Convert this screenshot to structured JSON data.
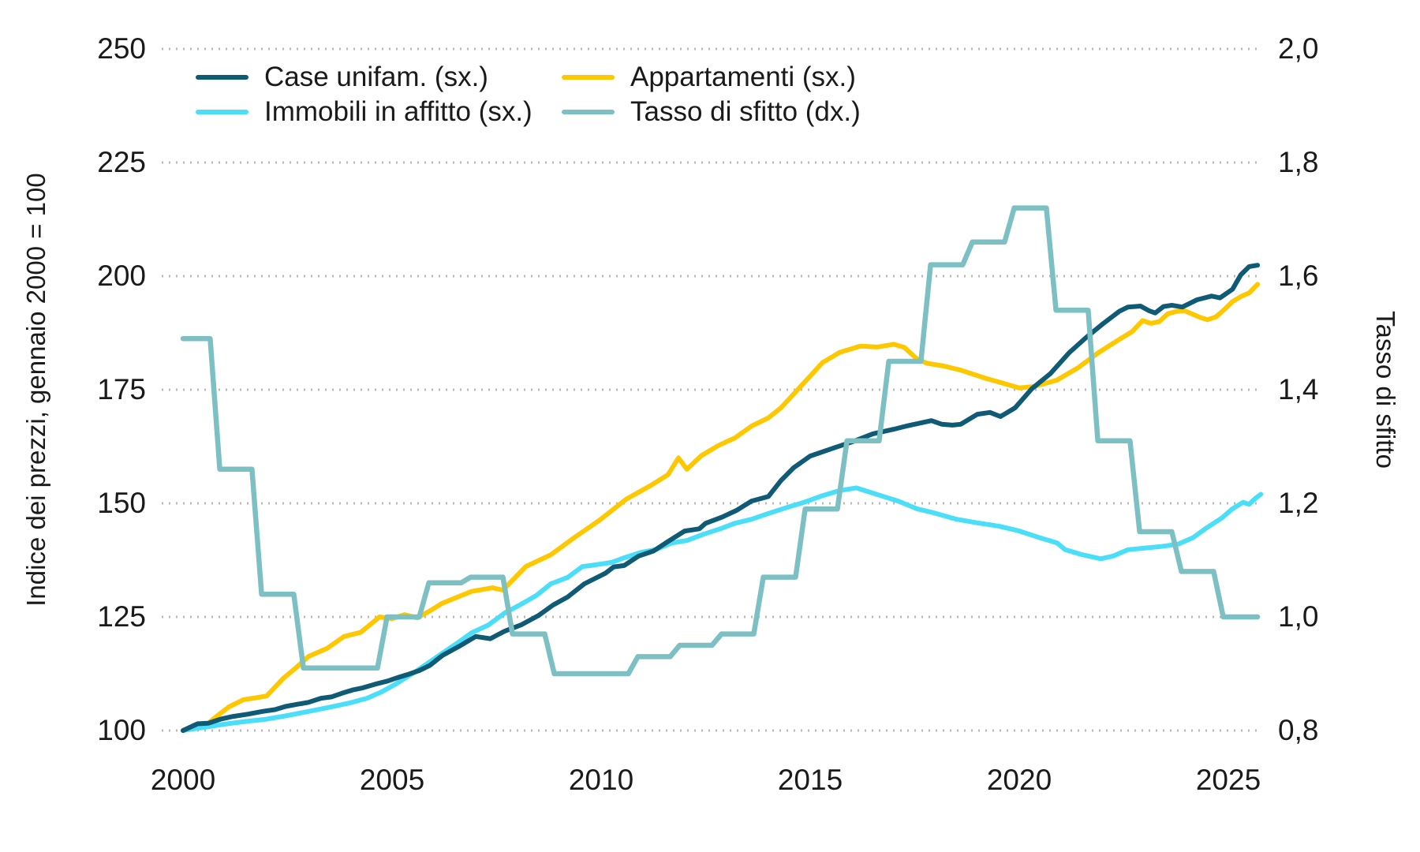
{
  "colors": {
    "case_unifam": "#0f5a74",
    "appartamenti": "#fec800",
    "immobili_affitto": "#4adef8",
    "tasso_sfitto": "#7cc0c3",
    "grid": "#b8b8b8",
    "text": "#1a1a1a"
  },
  "legend": {
    "case_unifam": "Case unifam. (sx.)",
    "immobili_affitto": "Immobili in affitto (sx.)",
    "appartamenti": "Appartamenti (sx.)",
    "tasso_sfitto": "Tasso di sfitto (dx.)"
  },
  "chart_data": {
    "type": "line",
    "title": "",
    "xlabel": "",
    "ylabel_left": "Indice dei prezzi, gennaio 2000 = 100",
    "ylabel_right": "Tasso di sfitto",
    "grid": "dotted horizontal",
    "legend_position": "top-left, two columns",
    "x_axis": {
      "range": [
        2000,
        2025.7
      ],
      "ticks": [
        2000,
        2005,
        2010,
        2015,
        2020,
        2025
      ],
      "tick_labels": [
        "2000",
        "2005",
        "2010",
        "2015",
        "2020",
        "2025"
      ]
    },
    "y_axis_left": {
      "range": [
        100,
        250
      ],
      "tick_values": [
        100,
        125,
        150,
        175,
        200,
        225,
        250
      ],
      "tick_labels": [
        "100",
        "125",
        "150",
        "175",
        "200",
        "225",
        "250"
      ]
    },
    "y_axis_right": {
      "range": [
        0.8,
        2.0
      ],
      "tick_values": [
        0.8,
        1.0,
        1.2,
        1.4,
        1.6,
        1.8,
        2.0
      ],
      "tick_labels": [
        "0,8",
        "1,0",
        "1,2",
        "1,4",
        "1,6",
        "1,8",
        "2,0"
      ]
    },
    "series": [
      {
        "id": "appartamenti",
        "name": "Appartamenti (sx.)",
        "axis": "left",
        "style": "line",
        "points": [
          [
            0,
            100
          ],
          [
            0.3,
            101.2
          ],
          [
            0.5,
            100.8
          ],
          [
            0.8,
            103.1
          ],
          [
            1.1,
            105.2
          ],
          [
            1.45,
            106.8
          ],
          [
            1.75,
            107.2
          ],
          [
            2,
            107.6
          ],
          [
            2.4,
            111.5
          ],
          [
            2.7,
            113.8
          ],
          [
            3,
            116.3
          ],
          [
            3.45,
            118.1
          ],
          [
            3.85,
            120.7
          ],
          [
            4.25,
            121.6
          ],
          [
            4.7,
            125
          ],
          [
            5,
            124.6
          ],
          [
            5.3,
            125.5
          ],
          [
            5.6,
            124.8
          ],
          [
            5.9,
            126.3
          ],
          [
            6.2,
            128
          ],
          [
            6.9,
            130.6
          ],
          [
            7.4,
            131.4
          ],
          [
            7.65,
            130.9
          ],
          [
            8.2,
            136.1
          ],
          [
            8.8,
            138.7
          ],
          [
            9.35,
            142.4
          ],
          [
            9.95,
            146.2
          ],
          [
            10.6,
            150.9
          ],
          [
            11.2,
            154
          ],
          [
            11.6,
            156.3
          ],
          [
            11.85,
            160
          ],
          [
            12.05,
            157.5
          ],
          [
            12.4,
            160.5
          ],
          [
            12.8,
            162.7
          ],
          [
            13.2,
            164.4
          ],
          [
            13.6,
            167
          ],
          [
            14,
            168.8
          ],
          [
            14.3,
            171
          ],
          [
            14.7,
            175
          ],
          [
            15,
            178
          ],
          [
            15.3,
            181
          ],
          [
            15.7,
            183.2
          ],
          [
            16.2,
            184.6
          ],
          [
            16.6,
            184.4
          ],
          [
            17,
            185
          ],
          [
            17.25,
            184.3
          ],
          [
            17.55,
            181.8
          ],
          [
            17.8,
            180.8
          ],
          [
            18.2,
            180.2
          ],
          [
            18.6,
            179.3
          ],
          [
            19.2,
            177.5
          ],
          [
            19.7,
            176.2
          ],
          [
            20,
            175.4
          ],
          [
            20.35,
            175.7
          ],
          [
            20.9,
            177.1
          ],
          [
            21.4,
            179.8
          ],
          [
            21.9,
            183.2
          ],
          [
            22.4,
            186.1
          ],
          [
            22.7,
            187.8
          ],
          [
            22.95,
            190.2
          ],
          [
            23.15,
            189.6
          ],
          [
            23.35,
            190
          ],
          [
            23.55,
            191.7
          ],
          [
            23.75,
            192.2
          ],
          [
            23.95,
            192.4
          ],
          [
            24.1,
            191.8
          ],
          [
            24.3,
            191
          ],
          [
            24.5,
            190.4
          ],
          [
            24.7,
            191
          ],
          [
            24.9,
            192.6
          ],
          [
            25.1,
            194.4
          ],
          [
            25.3,
            195.5
          ],
          [
            25.5,
            196.3
          ],
          [
            25.7,
            198.2
          ]
        ]
      },
      {
        "id": "immobili_affitto",
        "name": "Immobili in affitto (sx.)",
        "axis": "left",
        "style": "line",
        "points": [
          [
            0,
            100
          ],
          [
            0.5,
            100.7
          ],
          [
            1,
            101.4
          ],
          [
            1.5,
            102
          ],
          [
            2,
            102.5
          ],
          [
            2.5,
            103.3
          ],
          [
            3,
            104.2
          ],
          [
            3.5,
            105.1
          ],
          [
            4,
            106.1
          ],
          [
            4.4,
            107.1
          ],
          [
            4.75,
            108.5
          ],
          [
            5.1,
            110.3
          ],
          [
            5.6,
            113.2
          ],
          [
            6.2,
            117
          ],
          [
            6.6,
            119.5
          ],
          [
            6.9,
            121.5
          ],
          [
            7.3,
            123.2
          ],
          [
            7.7,
            125.9
          ],
          [
            8.05,
            127.6
          ],
          [
            8.45,
            129.7
          ],
          [
            8.8,
            132.3
          ],
          [
            9.2,
            133.7
          ],
          [
            9.55,
            136.1
          ],
          [
            9.75,
            136.3
          ],
          [
            10.25,
            137
          ],
          [
            10.55,
            138
          ],
          [
            10.95,
            139.2
          ],
          [
            11.3,
            139.8
          ],
          [
            11.7,
            141.3
          ],
          [
            12.05,
            141.8
          ],
          [
            12.45,
            143.2
          ],
          [
            12.85,
            144.4
          ],
          [
            13.2,
            145.6
          ],
          [
            13.6,
            146.5
          ],
          [
            13.95,
            147.6
          ],
          [
            14.45,
            149.1
          ],
          [
            14.85,
            150.2
          ],
          [
            15.3,
            151.7
          ],
          [
            15.7,
            152.8
          ],
          [
            16.1,
            153.4
          ],
          [
            16.45,
            152.4
          ],
          [
            16.72,
            151.6
          ],
          [
            17.1,
            150.5
          ],
          [
            17.55,
            148.8
          ],
          [
            18,
            147.8
          ],
          [
            18.5,
            146.5
          ],
          [
            19,
            145.7
          ],
          [
            19.5,
            145
          ],
          [
            20,
            143.9
          ],
          [
            20.5,
            142.4
          ],
          [
            20.9,
            141.3
          ],
          [
            21.1,
            139.8
          ],
          [
            21.5,
            138.7
          ],
          [
            21.95,
            137.8
          ],
          [
            22.25,
            138.4
          ],
          [
            22.6,
            139.8
          ],
          [
            22.95,
            140.1
          ],
          [
            23.4,
            140.5
          ],
          [
            23.8,
            141
          ],
          [
            24.15,
            142.4
          ],
          [
            24.45,
            144.4
          ],
          [
            24.85,
            146.8
          ],
          [
            25.1,
            148.8
          ],
          [
            25.35,
            150.2
          ],
          [
            25.5,
            149.8
          ],
          [
            25.65,
            151.1
          ],
          [
            25.78,
            152
          ]
        ]
      },
      {
        "id": "case_unifam",
        "name": "Case unifam. (sx.)",
        "axis": "left",
        "style": "line",
        "points": [
          [
            0,
            100
          ],
          [
            0.35,
            101.5
          ],
          [
            0.6,
            101.6
          ],
          [
            0.9,
            102.5
          ],
          [
            1.2,
            103.1
          ],
          [
            1.55,
            103.6
          ],
          [
            1.9,
            104.2
          ],
          [
            2.2,
            104.6
          ],
          [
            2.45,
            105.3
          ],
          [
            2.75,
            105.8
          ],
          [
            3,
            106.2
          ],
          [
            3.3,
            107.1
          ],
          [
            3.55,
            107.4
          ],
          [
            3.8,
            108.2
          ],
          [
            4.05,
            108.9
          ],
          [
            4.3,
            109.4
          ],
          [
            4.6,
            110.2
          ],
          [
            4.9,
            110.9
          ],
          [
            5.15,
            111.7
          ],
          [
            5.4,
            112.4
          ],
          [
            5.65,
            113.2
          ],
          [
            5.9,
            114.3
          ],
          [
            6.2,
            116.5
          ],
          [
            6.6,
            118.5
          ],
          [
            7,
            120.7
          ],
          [
            7.35,
            120.2
          ],
          [
            7.7,
            121.9
          ],
          [
            8.1,
            123.3
          ],
          [
            8.5,
            125.3
          ],
          [
            8.85,
            127.6
          ],
          [
            9.2,
            129.4
          ],
          [
            9.6,
            132.3
          ],
          [
            10.1,
            134.6
          ],
          [
            10.3,
            136
          ],
          [
            10.55,
            136.3
          ],
          [
            10.9,
            138.4
          ],
          [
            11.25,
            139.5
          ],
          [
            11.6,
            141.6
          ],
          [
            12,
            143.9
          ],
          [
            12.35,
            144.4
          ],
          [
            12.5,
            145.6
          ],
          [
            12.9,
            147
          ],
          [
            13.25,
            148.5
          ],
          [
            13.6,
            150.5
          ],
          [
            14,
            151.5
          ],
          [
            14.3,
            155
          ],
          [
            14.6,
            157.8
          ],
          [
            15,
            160.4
          ],
          [
            15.6,
            162.3
          ],
          [
            16,
            163.5
          ],
          [
            16.5,
            165.3
          ],
          [
            17,
            166.3
          ],
          [
            17.3,
            167
          ],
          [
            17.9,
            168.2
          ],
          [
            18.15,
            167.4
          ],
          [
            18.4,
            167.2
          ],
          [
            18.6,
            167.4
          ],
          [
            19,
            169.6
          ],
          [
            19.3,
            170
          ],
          [
            19.55,
            169.1
          ],
          [
            19.9,
            171
          ],
          [
            20.3,
            175.2
          ],
          [
            20.75,
            178.6
          ],
          [
            21.2,
            183.2
          ],
          [
            21.6,
            186.5
          ],
          [
            22,
            189.5
          ],
          [
            22.4,
            192.3
          ],
          [
            22.6,
            193.2
          ],
          [
            22.9,
            193.4
          ],
          [
            23.1,
            192.4
          ],
          [
            23.25,
            191.9
          ],
          [
            23.45,
            193.3
          ],
          [
            23.65,
            193.6
          ],
          [
            23.9,
            193.2
          ],
          [
            24.25,
            194.8
          ],
          [
            24.6,
            195.6
          ],
          [
            24.8,
            195.2
          ],
          [
            25.1,
            197.1
          ],
          [
            25.3,
            200.3
          ],
          [
            25.5,
            202.1
          ],
          [
            25.7,
            202.4
          ]
        ]
      },
      {
        "id": "tasso_sfitto",
        "name": "Tasso di sfitto (dx.)",
        "axis": "right",
        "style": "step",
        "years": [
          2000,
          2001,
          2002,
          2003,
          2004,
          2005,
          2006,
          2007,
          2008,
          2009,
          2010,
          2011,
          2012,
          2013,
          2014,
          2015,
          2016,
          2017,
          2018,
          2019,
          2020,
          2021,
          2022,
          2023,
          2024,
          2025
        ],
        "values": [
          1.49,
          1.26,
          1.04,
          0.91,
          0.91,
          1.0,
          1.06,
          1.07,
          0.97,
          0.9,
          0.9,
          0.93,
          0.95,
          0.97,
          1.07,
          1.19,
          1.31,
          1.45,
          1.62,
          1.66,
          1.72,
          1.54,
          1.31,
          1.15,
          1.08,
          1.0
        ]
      }
    ]
  }
}
